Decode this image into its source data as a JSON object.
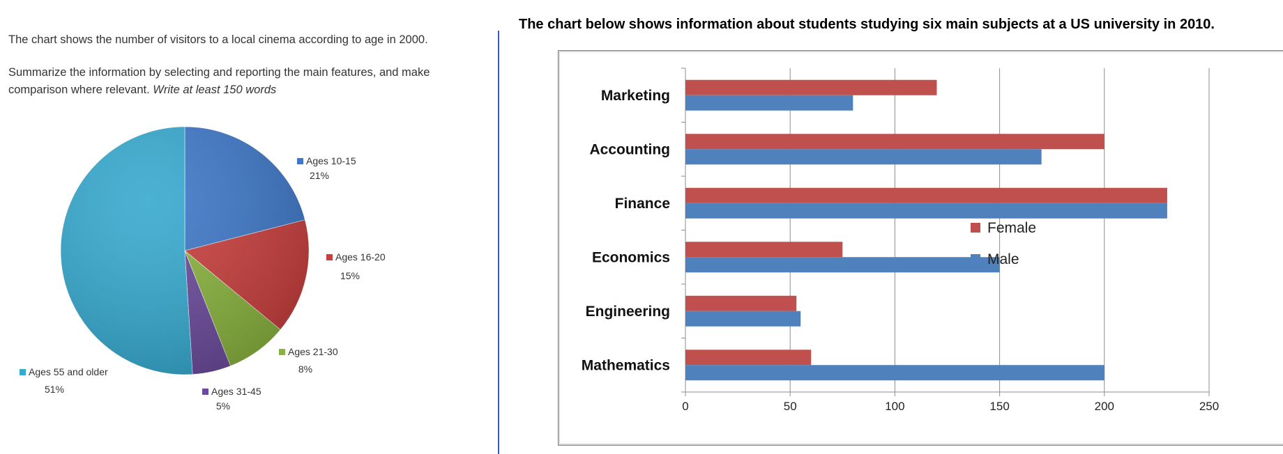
{
  "prompt": {
    "line1": "The chart shows the number of visitors to a local cinema according to age in 2000.",
    "line2_normal": "Summarize the information by selecting and reporting the main features, and make comparison where relevant. ",
    "line2_italic": "Write at least 150 words"
  },
  "chart_data": [
    {
      "type": "pie",
      "categories": [
        "Ages 10-15",
        "Ages 16-20",
        "Ages 21-30",
        "Ages 31-45",
        "Ages 55 and older"
      ],
      "values": [
        21,
        15,
        8,
        5,
        51
      ],
      "value_labels": [
        "21%",
        "15%",
        "8%",
        "5%",
        "51%"
      ],
      "colors": [
        "#3f78c8",
        "#c8403e",
        "#8ab33f",
        "#6c4b9c",
        "#37a9cf"
      ],
      "legend": "labels beside slices"
    },
    {
      "type": "bar",
      "orientation": "horizontal",
      "title": "The chart below shows information about students studying six main subjects at a US university in 2010.",
      "categories": [
        "Marketing",
        "Accounting",
        "Finance",
        "Economics",
        "Engineering",
        "Mathematics"
      ],
      "series": [
        {
          "name": "Female",
          "color": "#c0504d",
          "values": [
            120,
            200,
            230,
            75,
            53,
            60
          ]
        },
        {
          "name": "Male",
          "color": "#4f81bd",
          "values": [
            80,
            170,
            230,
            150,
            55,
            200
          ]
        }
      ],
      "xticks": [
        "0",
        "50",
        "100",
        "150",
        "200",
        "250"
      ],
      "xlim": [
        0,
        250
      ],
      "grid": true,
      "legend": "right"
    }
  ]
}
